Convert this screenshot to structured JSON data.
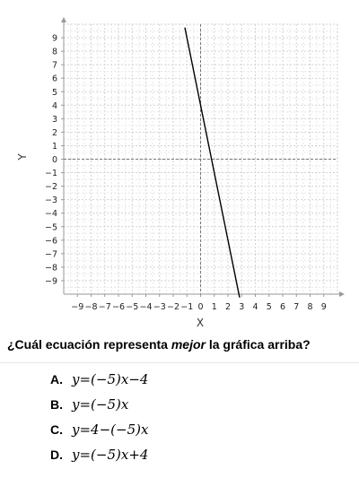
{
  "chart_data": {
    "type": "line",
    "xlabel": "X",
    "ylabel": "Y",
    "xlim": [
      -10,
      10
    ],
    "ylim": [
      -10,
      10
    ],
    "xticks": [
      -9,
      -8,
      -7,
      -6,
      -5,
      -4,
      -3,
      -2,
      -1,
      0,
      1,
      2,
      3,
      4,
      5,
      6,
      7,
      8,
      9
    ],
    "yticks": [
      -9,
      -8,
      -7,
      -6,
      -5,
      -4,
      -3,
      -2,
      -1,
      0,
      1,
      2,
      3,
      4,
      5,
      6,
      7,
      8,
      9
    ],
    "grid": true,
    "series": [
      {
        "x": [
          -1.15,
          2.85
        ],
        "y": [
          9.75,
          -10.25
        ]
      }
    ]
  },
  "question": {
    "prefix": "¿Cuál ecuación representa ",
    "emphasis": "mejor",
    "suffix": " la gráfica arriba?"
  },
  "choices": [
    {
      "letter": "A.",
      "equation": "y=(−5)x−4"
    },
    {
      "letter": "B.",
      "equation": "y=(−5)x"
    },
    {
      "letter": "C.",
      "equation": "y=4−(−5)x"
    },
    {
      "letter": "D.",
      "equation": "y=(−5)x+4"
    }
  ]
}
